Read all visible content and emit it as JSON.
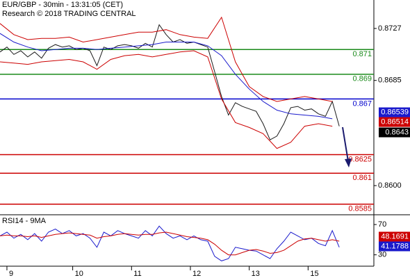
{
  "chart_data": [
    {
      "type": "line",
      "title": "EUR/GBP - 30min - 13:31:05 (CET)",
      "subtitle": "Research © 2018 TRADING CENTRAL",
      "xlim": [
        0,
        108
      ],
      "ylim": [
        0.8577,
        0.875
      ],
      "yticks": [
        0.8727,
        0.8685,
        {
          "value": 0.86,
          "label": "0.8600"
        }
      ],
      "series": [
        {
          "color": "#1a1a1a",
          "x": [
            0,
            2,
            4,
            6,
            8,
            10,
            12,
            14,
            16,
            18,
            20,
            22,
            24,
            26,
            28,
            30,
            32,
            34,
            36,
            38,
            40,
            42,
            44,
            46,
            48,
            50,
            52,
            54,
            56,
            58,
            60,
            62,
            64,
            66,
            68,
            70,
            72,
            74,
            76,
            78,
            80,
            82,
            84,
            86,
            88,
            90,
            92,
            94,
            96,
            98
          ],
          "values": [
            0.8708,
            0.8712,
            0.8706,
            0.8709,
            0.8704,
            0.8708,
            0.8703,
            0.8711,
            0.8714,
            0.8712,
            0.8713,
            0.871,
            0.8711,
            0.8709,
            0.8697,
            0.8712,
            0.871,
            0.8713,
            0.8714,
            0.8713,
            0.8711,
            0.8715,
            0.8712,
            0.873,
            0.8722,
            0.8716,
            0.8718,
            0.8715,
            0.8716,
            0.8714,
            0.8712,
            0.8692,
            0.8672,
            0.8657,
            0.8667,
            0.8664,
            0.8662,
            0.866,
            0.865,
            0.8637,
            0.864,
            0.865,
            0.8663,
            0.8664,
            0.8661,
            0.8662,
            0.8658,
            0.8656,
            0.8668,
            0.8648
          ]
        },
        {
          "color": "#cc0000",
          "x": [
            0,
            4,
            8,
            12,
            16,
            20,
            24,
            28,
            32,
            36,
            40,
            44,
            48,
            52,
            56,
            60,
            64,
            68,
            72,
            76,
            80,
            84,
            88,
            92,
            96
          ],
          "values": [
            0.8731,
            0.8722,
            0.8718,
            0.8719,
            0.8719,
            0.872,
            0.8716,
            0.8718,
            0.872,
            0.8722,
            0.8724,
            0.8724,
            0.8726,
            0.8722,
            0.872,
            0.8719,
            0.8736,
            0.87,
            0.868,
            0.8672,
            0.8668,
            0.867,
            0.8672,
            0.867,
            0.8668
          ]
        },
        {
          "color": "#cc0000",
          "x": [
            0,
            4,
            8,
            12,
            16,
            20,
            24,
            28,
            32,
            36,
            40,
            44,
            48,
            52,
            56,
            60,
            64,
            68,
            72,
            76,
            80,
            84,
            88,
            92,
            96
          ],
          "values": [
            0.87,
            0.8699,
            0.8698,
            0.87,
            0.8701,
            0.8702,
            0.87,
            0.8694,
            0.8702,
            0.8705,
            0.8706,
            0.8704,
            0.8706,
            0.8708,
            0.8709,
            0.8704,
            0.867,
            0.8651,
            0.8647,
            0.8642,
            0.863,
            0.8635,
            0.8648,
            0.865,
            0.8648
          ]
        },
        {
          "color": "#1a1acc",
          "x": [
            0,
            4,
            8,
            12,
            16,
            20,
            24,
            28,
            32,
            36,
            40,
            44,
            48,
            52,
            56,
            60,
            64,
            68,
            72,
            76,
            80,
            84,
            88,
            92,
            96
          ],
          "values": [
            0.8723,
            0.8716,
            0.8712,
            0.8709,
            0.871,
            0.8711,
            0.8711,
            0.871,
            0.8711,
            0.8712,
            0.8713,
            0.8714,
            0.8716,
            0.8716,
            0.8716,
            0.8713,
            0.8705,
            0.869,
            0.8678,
            0.8668,
            0.8661,
            0.8658,
            0.8657,
            0.8656,
            0.8654
          ]
        }
      ],
      "levels": [
        {
          "value": 0.871,
          "color": "#1a8a1a"
        },
        {
          "value": 0.869,
          "color": "#1a8a1a"
        },
        {
          "value": 0.867,
          "color": "#0000cc"
        },
        {
          "value": 0.8625,
          "color": "#cc0000"
        },
        {
          "value": 0.861,
          "color": "#cc0000"
        },
        {
          "value": 0.8585,
          "color": "#cc0000"
        }
      ],
      "price_tags": [
        {
          "value": 0.86539,
          "color": "#1a1acc"
        },
        {
          "value": 0.86514,
          "color": "#cc0000"
        },
        {
          "value": 0.8643,
          "color": "#000000"
        }
      ]
    },
    {
      "type": "line",
      "title": "RSI14 - 9MA",
      "xlim": [
        0,
        108
      ],
      "ylim": [
        15,
        82
      ],
      "yticks": [
        70,
        30
      ],
      "xticks": [
        {
          "value": 2,
          "label": "9"
        },
        {
          "value": 21,
          "label": "10"
        },
        {
          "value": 38,
          "label": "11"
        },
        {
          "value": 55,
          "label": "12"
        },
        {
          "value": 72,
          "label": "13"
        },
        {
          "value": 89,
          "label": "15"
        }
      ],
      "series": [
        {
          "color": "#1a1acc",
          "x": [
            0,
            2,
            4,
            6,
            8,
            10,
            12,
            14,
            16,
            18,
            20,
            22,
            24,
            26,
            28,
            30,
            32,
            34,
            36,
            38,
            40,
            42,
            44,
            46,
            48,
            50,
            52,
            54,
            56,
            58,
            60,
            62,
            64,
            66,
            68,
            70,
            72,
            74,
            76,
            78,
            80,
            82,
            84,
            86,
            88,
            90,
            92,
            94,
            96,
            98
          ],
          "values": [
            55,
            60,
            52,
            57,
            50,
            58,
            48,
            60,
            64,
            58,
            62,
            55,
            58,
            52,
            40,
            60,
            55,
            62,
            58,
            55,
            52,
            62,
            55,
            68,
            58,
            52,
            55,
            50,
            55,
            50,
            48,
            28,
            22,
            25,
            40,
            38,
            36,
            35,
            30,
            25,
            38,
            48,
            60,
            55,
            50,
            52,
            45,
            42,
            62,
            40
          ]
        },
        {
          "color": "#cc0000",
          "x": [
            0,
            2,
            4,
            6,
            8,
            10,
            12,
            14,
            16,
            18,
            20,
            22,
            24,
            26,
            28,
            30,
            32,
            34,
            36,
            38,
            40,
            42,
            44,
            46,
            48,
            50,
            52,
            54,
            56,
            58,
            60,
            62,
            64,
            66,
            68,
            70,
            72,
            74,
            76,
            78,
            80,
            82,
            84,
            86,
            88,
            90,
            92,
            94,
            96,
            98
          ],
          "values": [
            55,
            56,
            55,
            55,
            54,
            55,
            53,
            55,
            57,
            58,
            59,
            58,
            57,
            56,
            52,
            54,
            55,
            57,
            58,
            57,
            56,
            57,
            57,
            59,
            60,
            58,
            56,
            54,
            53,
            52,
            50,
            44,
            36,
            30,
            30,
            33,
            36,
            37,
            35,
            32,
            33,
            36,
            42,
            48,
            51,
            52,
            50,
            48,
            50,
            48
          ]
        }
      ],
      "price_tags": [
        {
          "value": 48.1691,
          "color": "#cc0000"
        },
        {
          "value": 41.1788,
          "color": "#1a1acc"
        }
      ]
    }
  ]
}
